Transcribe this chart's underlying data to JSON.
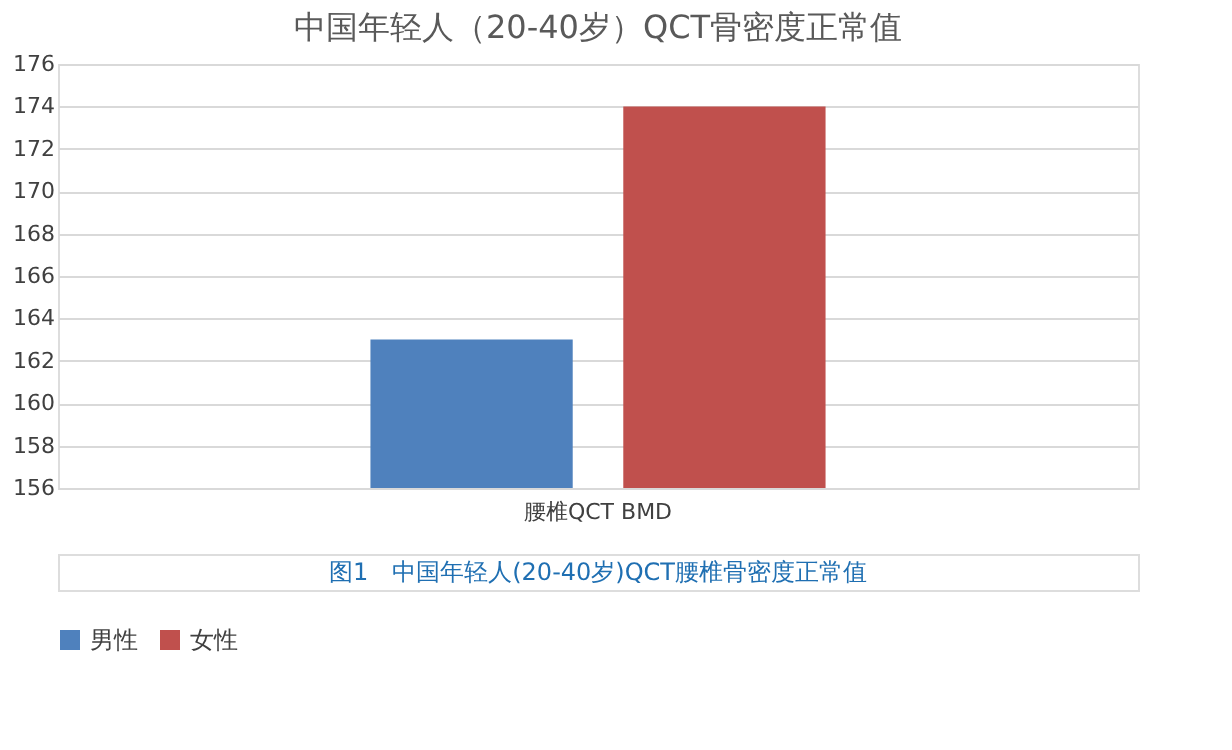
{
  "chart_data": {
    "type": "bar",
    "title": "中国年轻人（20-40岁）QCT骨密度正常值",
    "categories": [
      "腰椎QCT BMD"
    ],
    "series": [
      {
        "name": "男性",
        "color": "#4f81bd",
        "values": [
          163
        ]
      },
      {
        "name": "女性",
        "color": "#c0504d",
        "values": [
          174
        ]
      }
    ],
    "ylim": [
      156,
      176
    ],
    "yticks": [
      156,
      158,
      160,
      162,
      164,
      166,
      168,
      170,
      172,
      174,
      176
    ],
    "grid": "y",
    "legend": "bottom",
    "annotations": [
      "图1　中国年轻人(20-40岁)QCT腰椎骨密度正常值"
    ]
  }
}
